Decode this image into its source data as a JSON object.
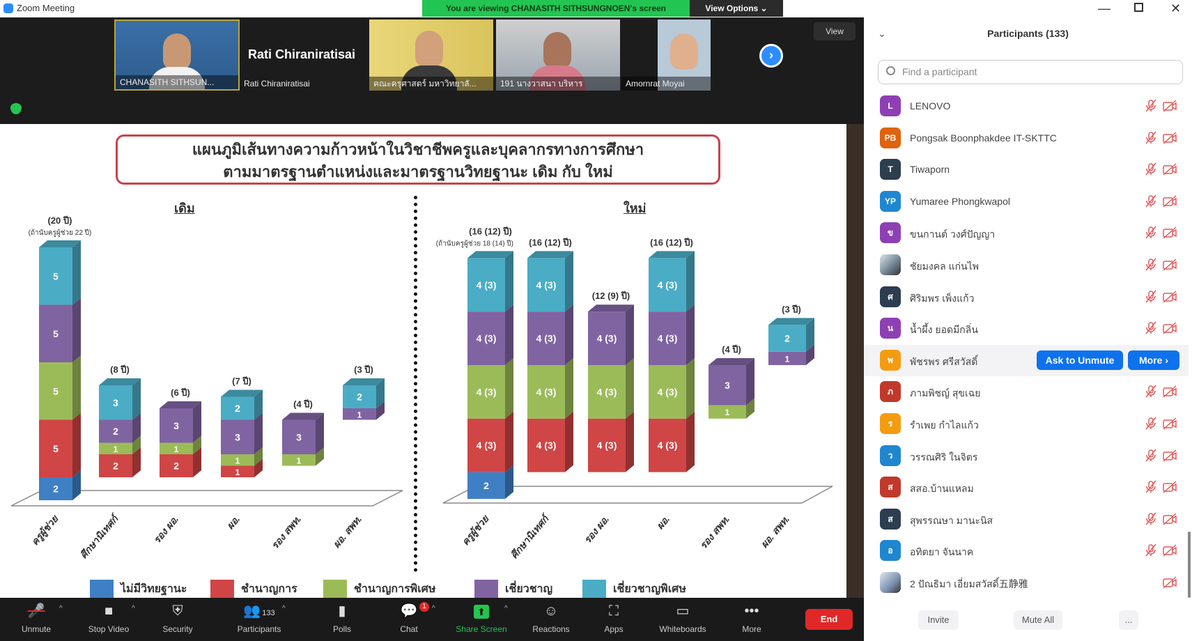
{
  "window": {
    "title": "Zoom Meeting"
  },
  "banner": {
    "text": "You are viewing CHANASITH SITHSUNGNOEN's screen",
    "view_options": "View Options ⌄"
  },
  "videos": {
    "tiles": [
      {
        "name": "CHANASITH SITHSUN..."
      },
      {
        "name": "Rati Chiraniratisai",
        "display": "Rati Chiraniratisai"
      },
      {
        "name": "คณะครุศาสตร์ มหาวิทยาลั..."
      },
      {
        "name": "191 นางวาสนา บริหาร"
      },
      {
        "name": "Amornrat Moyai"
      }
    ],
    "next": "›",
    "view_label": "View"
  },
  "slide": {
    "title_line1": "แผนภูมิเส้นทางความก้าวหน้าในวิชาชีพครูและบุคลากรทางการศึกษา",
    "title_line2": "ตามมาตรฐานตำแหน่งและมาตรฐานวิทยฐานะ เดิม กับ ใหม่",
    "left_heading": "เดิม",
    "right_heading": "ใหม่"
  },
  "chart_data": {
    "type": "bar",
    "stacked": true,
    "legend": [
      {
        "label": "ไม่มีวิทยฐานะ",
        "color": "#3f7fc4"
      },
      {
        "label": "ชำนาญการ",
        "color": "#d04545"
      },
      {
        "label": "ชำนาญการพิเศษ",
        "color": "#9bbb59"
      },
      {
        "label": "เชี่ยวชาญ",
        "color": "#8064a2"
      },
      {
        "label": "เชี่ยวชาญพิเศษ",
        "color": "#4bacc6"
      }
    ],
    "categories": [
      "ครูผู้ช่วย",
      "ศึกษานิเทศก์",
      "รอง ผอ.",
      "ผอ.",
      "รอง สพท.",
      "ผอ. สพท."
    ],
    "panels": [
      {
        "name": "เดิม",
        "bars": [
          {
            "start": 0,
            "segments": [
              {
                "s": 0,
                "v": 2,
                "label": "2"
              },
              {
                "s": 1,
                "v": 5,
                "label": "5"
              },
              {
                "s": 2,
                "v": 5,
                "label": "5"
              },
              {
                "s": 3,
                "v": 5,
                "label": "5"
              },
              {
                "s": 4,
                "v": 5,
                "label": "5"
              }
            ],
            "total": "(20 ปี)",
            "note": "(ถ้านับครูผู้ช่วย 22 ปี)"
          },
          {
            "start": 2,
            "segments": [
              {
                "s": 1,
                "v": 2,
                "label": "2"
              },
              {
                "s": 2,
                "v": 1,
                "label": "1"
              },
              {
                "s": 3,
                "v": 2,
                "label": "2"
              },
              {
                "s": 4,
                "v": 3,
                "label": "3"
              }
            ],
            "total": "(8 ปี)"
          },
          {
            "start": 2,
            "segments": [
              {
                "s": 1,
                "v": 2,
                "label": "2"
              },
              {
                "s": 2,
                "v": 1,
                "label": "1"
              },
              {
                "s": 3,
                "v": 3,
                "label": "3"
              }
            ],
            "total": "(6 ปี)"
          },
          {
            "start": 2,
            "segments": [
              {
                "s": 1,
                "v": 1,
                "label": "1"
              },
              {
                "s": 2,
                "v": 1,
                "label": "1"
              },
              {
                "s": 3,
                "v": 3,
                "label": "3"
              },
              {
                "s": 4,
                "v": 2,
                "label": "2"
              }
            ],
            "total": "(7 ปี)"
          },
          {
            "start": 3,
            "segments": [
              {
                "s": 2,
                "v": 1,
                "label": "1"
              },
              {
                "s": 3,
                "v": 3,
                "label": "3"
              }
            ],
            "total": "(4 ปี)"
          },
          {
            "start": 7,
            "segments": [
              {
                "s": 3,
                "v": 1,
                "label": "1"
              },
              {
                "s": 4,
                "v": 2,
                "label": "2"
              }
            ],
            "total": "(3 ปี)"
          }
        ]
      },
      {
        "name": "ใหม่",
        "bars": [
          {
            "start": 0,
            "segments": [
              {
                "s": 0,
                "v": 2,
                "label": "2"
              },
              {
                "s": 1,
                "v": 4,
                "label": "4 (3)"
              },
              {
                "s": 2,
                "v": 4,
                "label": "4 (3)"
              },
              {
                "s": 3,
                "v": 4,
                "label": "4 (3)"
              },
              {
                "s": 4,
                "v": 4,
                "label": "4 (3)"
              }
            ],
            "total": "(16 (12) ปี)",
            "note": "(ถ้านับครูผู้ช่วย 18 (14) ปี)"
          },
          {
            "start": 2,
            "segments": [
              {
                "s": 1,
                "v": 4,
                "label": "4 (3)"
              },
              {
                "s": 2,
                "v": 4,
                "label": "4 (3)"
              },
              {
                "s": 3,
                "v": 4,
                "label": "4 (3)"
              },
              {
                "s": 4,
                "v": 4,
                "label": "4 (3)"
              }
            ],
            "total": "(16 (12) ปี)"
          },
          {
            "start": 2,
            "segments": [
              {
                "s": 1,
                "v": 4,
                "label": "4 (3)"
              },
              {
                "s": 2,
                "v": 4,
                "label": "4 (3)"
              },
              {
                "s": 3,
                "v": 4,
                "label": "4 (3)"
              }
            ],
            "total": "(12 (9) ปี)"
          },
          {
            "start": 2,
            "segments": [
              {
                "s": 1,
                "v": 4,
                "label": "4 (3)"
              },
              {
                "s": 2,
                "v": 4,
                "label": "4 (3)"
              },
              {
                "s": 3,
                "v": 4,
                "label": "4 (3)"
              },
              {
                "s": 4,
                "v": 4,
                "label": "4 (3)"
              }
            ],
            "total": "(16 (12) ปี)"
          },
          {
            "start": 6,
            "segments": [
              {
                "s": 2,
                "v": 1,
                "label": "1"
              },
              {
                "s": 3,
                "v": 3,
                "label": "3"
              }
            ],
            "total": "(4 ปี)"
          },
          {
            "start": 10,
            "segments": [
              {
                "s": 3,
                "v": 1,
                "label": "1"
              },
              {
                "s": 4,
                "v": 2,
                "label": "2"
              }
            ],
            "total": "(3 ปี)"
          }
        ]
      }
    ]
  },
  "toolbar": {
    "items": [
      {
        "label": "Unmute",
        "icon": "🎤"
      },
      {
        "label": "Stop Video",
        "icon": "■"
      },
      {
        "label": "Security",
        "icon": "⛨"
      },
      {
        "label": "Participants",
        "icon": "👥",
        "count": "133"
      },
      {
        "label": "Polls",
        "icon": "▮"
      },
      {
        "label": "Chat",
        "icon": "💬",
        "badge": "1"
      },
      {
        "label": "Share Screen",
        "icon": "⬆"
      },
      {
        "label": "Reactions",
        "icon": "☺"
      },
      {
        "label": "Apps",
        "icon": "⛶"
      },
      {
        "label": "Whiteboards",
        "icon": "▭"
      },
      {
        "label": "More",
        "icon": "•••"
      }
    ],
    "end": "End",
    "share_color": "#23c552"
  },
  "panel": {
    "title": "Participants (133)",
    "search_placeholder": "Find a participant",
    "participants": [
      {
        "initials": "L",
        "name": "LENOVO",
        "color": "#8e3fb5"
      },
      {
        "initials": "PB",
        "name": "Pongsak Boonphakdee IT-SKTTC",
        "color": "#e0620d"
      },
      {
        "initials": "T",
        "name": "Tiwaporn",
        "color": "#2c3e50"
      },
      {
        "initials": "YP",
        "name": "Yumaree Phongkwapol",
        "color": "#1f87d0"
      },
      {
        "initials": "ข",
        "name": "ขนกานต์ วงศ์ปัญญา",
        "color": "#8e3fb5"
      },
      {
        "initials": "",
        "name": "ชัยมงคล แก่นไพ",
        "color": "#6a7d8c",
        "photo": true
      },
      {
        "initials": "ศ",
        "name": "ศิริมพร เพ็งแก้ว",
        "color": "#2c3e50"
      },
      {
        "initials": "น",
        "name": "น้ำผึ้ง ยอดมีกลิ่น",
        "color": "#8e3fb5"
      },
      {
        "initials": "พ",
        "name": "พัชรพร ศรีสวัสดิ์",
        "color": "#f39c12",
        "hover": true
      },
      {
        "initials": "ภ",
        "name": "ภามพิชญ์ สุขเฉย",
        "color": "#c0392b"
      },
      {
        "initials": "ร",
        "name": "รำเพย กำไลแก้ว",
        "color": "#f39c12"
      },
      {
        "initials": "ว",
        "name": "วรรณศิริ ในจิตร",
        "color": "#1f87d0"
      },
      {
        "initials": "ส",
        "name": "สสอ.บ้านแหลม",
        "color": "#c0392b"
      },
      {
        "initials": "ส",
        "name": "สุพรรณษา มานะนิส",
        "color": "#2c3e50"
      },
      {
        "initials": "อ",
        "name": "อทิตยา จันนาค",
        "color": "#1f87d0"
      },
      {
        "initials": "",
        "name": "2 ปัณธิมา เอี่ยมสวัสดิ์五静雅",
        "color": "#7a8fb0",
        "photo": true,
        "audio": false
      }
    ],
    "ask_unmute": "Ask to Unmute",
    "more": "More ›",
    "invite": "Invite",
    "mute_all": "Mute All",
    "overflow": "..."
  }
}
